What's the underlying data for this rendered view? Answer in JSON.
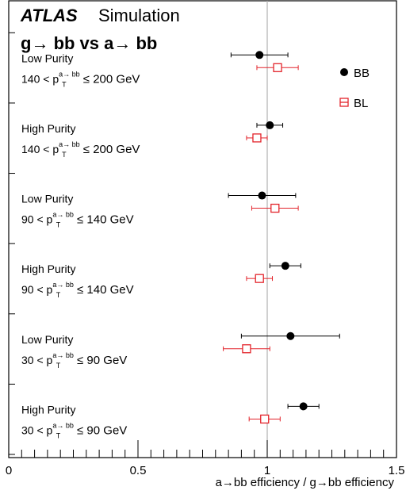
{
  "header": {
    "experiment": "ATLAS",
    "label": "Simulation",
    "title_lhs": "g",
    "title_lhs_rest": " bb vs a",
    "title_rhs_rest": " bb",
    "arrow": "→"
  },
  "chart_data": {
    "type": "scatter",
    "xlabel": "a→bb efficiency / g→bb efficiency",
    "xlim": [
      0,
      1.5
    ],
    "xticks": [
      0,
      0.5,
      1,
      1.5
    ],
    "xtick_labels": [
      "0",
      "0.5",
      "1",
      "1.5"
    ],
    "reference_line_x": 1,
    "legend_position": "top-right",
    "series": [
      {
        "name": "BB",
        "color": "#000000",
        "marker": "filled-circle"
      },
      {
        "name": "BL",
        "color": "#e3242b",
        "marker": "open-square"
      }
    ],
    "categories": [
      {
        "purity": "Low Purity",
        "pt_prefix": "140 < p",
        "pt_sup": "a→ bb",
        "pt_sub": "T",
        "pt_suffix": " ≤ 200 GeV",
        "BB": {
          "value": 0.97,
          "low": 0.86,
          "high": 1.08
        },
        "BL": {
          "value": 1.04,
          "low": 0.96,
          "high": 1.12
        }
      },
      {
        "purity": "High Purity",
        "pt_prefix": "140 < p",
        "pt_sup": "a→ bb",
        "pt_sub": "T",
        "pt_suffix": " ≤ 200 GeV",
        "BB": {
          "value": 1.01,
          "low": 0.96,
          "high": 1.06
        },
        "BL": {
          "value": 0.96,
          "low": 0.92,
          "high": 1.0
        }
      },
      {
        "purity": "Low Purity",
        "pt_prefix": "90 < p",
        "pt_sup": "a→ bb",
        "pt_sub": "T",
        "pt_suffix": " ≤ 140 GeV",
        "BB": {
          "value": 0.98,
          "low": 0.85,
          "high": 1.11
        },
        "BL": {
          "value": 1.03,
          "low": 0.94,
          "high": 1.12
        }
      },
      {
        "purity": "High Purity",
        "pt_prefix": "90 < p",
        "pt_sup": "a→ bb",
        "pt_sub": "T",
        "pt_suffix": " ≤ 140 GeV",
        "BB": {
          "value": 1.07,
          "low": 1.01,
          "high": 1.13
        },
        "BL": {
          "value": 0.97,
          "low": 0.92,
          "high": 1.02
        }
      },
      {
        "purity": "Low Purity",
        "pt_prefix": "30 < p",
        "pt_sup": "a→ bb",
        "pt_sub": "T",
        "pt_suffix": " ≤ 90 GeV",
        "BB": {
          "value": 1.09,
          "low": 0.9,
          "high": 1.28
        },
        "BL": {
          "value": 0.92,
          "low": 0.83,
          "high": 1.01
        }
      },
      {
        "purity": "High Purity",
        "pt_prefix": "30 < p",
        "pt_sup": "a→ bb",
        "pt_sub": "T",
        "pt_suffix": " ≤ 90 GeV",
        "BB": {
          "value": 1.14,
          "low": 1.08,
          "high": 1.2
        },
        "BL": {
          "value": 0.99,
          "low": 0.93,
          "high": 1.05
        }
      }
    ]
  }
}
